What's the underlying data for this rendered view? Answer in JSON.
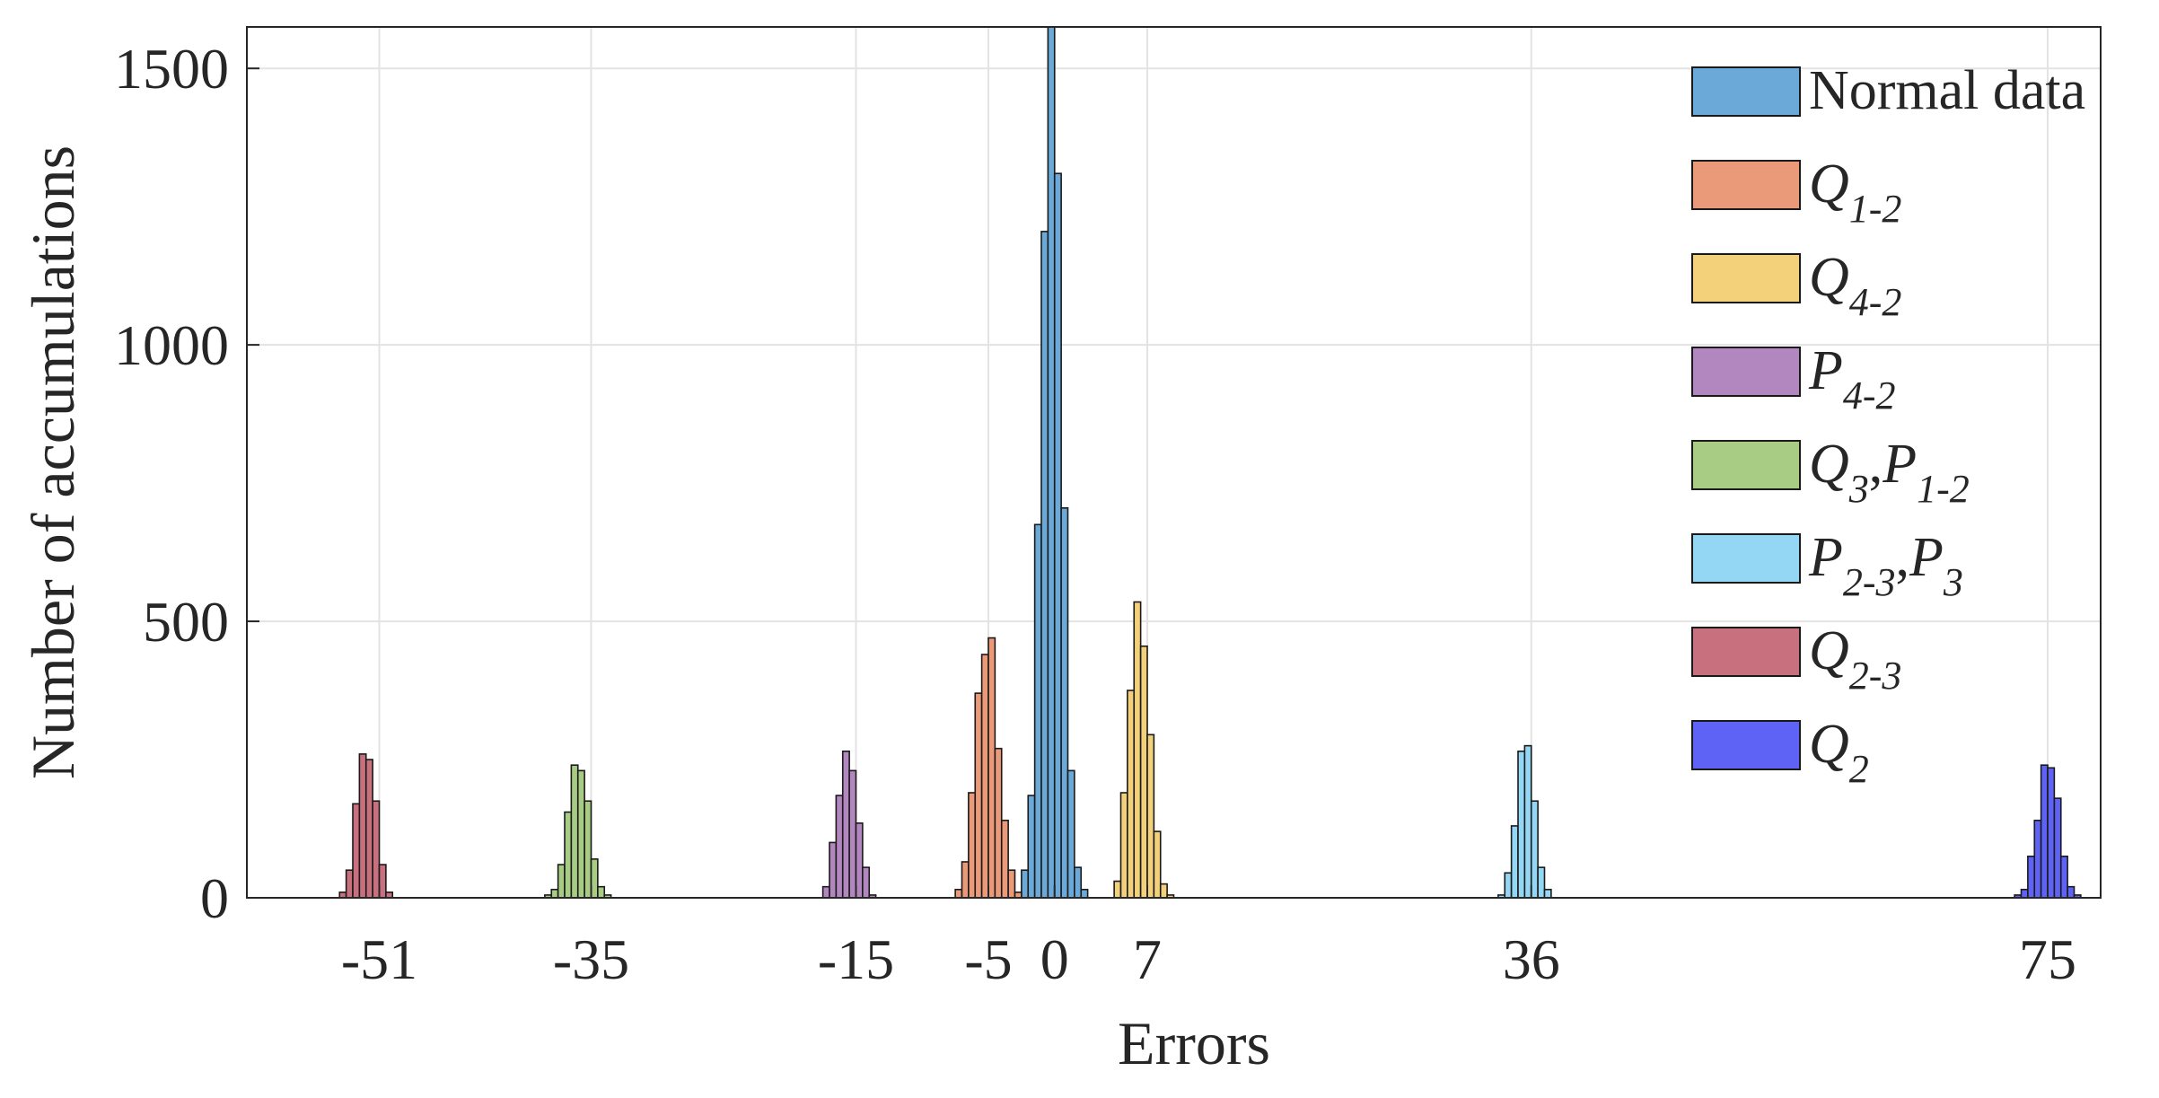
{
  "chart_data": {
    "type": "bar",
    "title": "",
    "xlabel": "Errors",
    "ylabel": "Number of accumulations",
    "xlim": [
      -61,
      79
    ],
    "ylim": [
      0,
      1575
    ],
    "x_ticks": [
      -51,
      -35,
      -15,
      -5,
      0,
      7,
      36,
      75
    ],
    "y_ticks": [
      0,
      500,
      1000,
      1500
    ],
    "grid": true,
    "legend_placement": "top-right",
    "bin_width": 0.5,
    "series": [
      {
        "name": "Normal data",
        "color": "#6aa9d8",
        "bins": [
          {
            "x": -2.5,
            "y": 50
          },
          {
            "x": -2.0,
            "y": 185
          },
          {
            "x": -1.5,
            "y": 675
          },
          {
            "x": -1.0,
            "y": 1205
          },
          {
            "x": -0.5,
            "y": 1580
          },
          {
            "x": 0.0,
            "y": 1310
          },
          {
            "x": 0.5,
            "y": 705
          },
          {
            "x": 1.0,
            "y": 230
          },
          {
            "x": 1.5,
            "y": 55
          },
          {
            "x": 2.0,
            "y": 15
          }
        ]
      },
      {
        "name": "Q1-2",
        "label_main": "Q",
        "label_sub": "1-2",
        "color": "#eb9a79",
        "bins": [
          {
            "x": -7.5,
            "y": 15
          },
          {
            "x": -7.0,
            "y": 65
          },
          {
            "x": -6.5,
            "y": 190
          },
          {
            "x": -6.0,
            "y": 370
          },
          {
            "x": -5.5,
            "y": 440
          },
          {
            "x": -5.0,
            "y": 470
          },
          {
            "x": -4.5,
            "y": 270
          },
          {
            "x": -4.0,
            "y": 140
          },
          {
            "x": -3.5,
            "y": 50
          },
          {
            "x": -3.0,
            "y": 10
          }
        ]
      },
      {
        "name": "Q4-2",
        "label_main": "Q",
        "label_sub": "4-2",
        "color": "#f3d07a",
        "bins": [
          {
            "x": 4.5,
            "y": 30
          },
          {
            "x": 5.0,
            "y": 190
          },
          {
            "x": 5.5,
            "y": 375
          },
          {
            "x": 6.0,
            "y": 535
          },
          {
            "x": 6.5,
            "y": 455
          },
          {
            "x": 7.0,
            "y": 295
          },
          {
            "x": 7.5,
            "y": 120
          },
          {
            "x": 8.0,
            "y": 25
          },
          {
            "x": 8.5,
            "y": 5
          }
        ]
      },
      {
        "name": "P4-2",
        "label_main": "P",
        "label_sub": "4-2",
        "color": "#b286bf",
        "bins": [
          {
            "x": -17.5,
            "y": 20
          },
          {
            "x": -17.0,
            "y": 100
          },
          {
            "x": -16.5,
            "y": 185
          },
          {
            "x": -16.0,
            "y": 265
          },
          {
            "x": -15.5,
            "y": 230
          },
          {
            "x": -15.0,
            "y": 135
          },
          {
            "x": -14.5,
            "y": 55
          },
          {
            "x": -14.0,
            "y": 5
          }
        ]
      },
      {
        "name": "Q3,P1-2",
        "label_main": "Q",
        "label_sub": "3",
        "label_main2": "P",
        "label_sub2": "1-2",
        "color": "#a9cc85",
        "bins": [
          {
            "x": -38.5,
            "y": 5
          },
          {
            "x": -38.0,
            "y": 15
          },
          {
            "x": -37.5,
            "y": 60
          },
          {
            "x": -37.0,
            "y": 155
          },
          {
            "x": -36.5,
            "y": 240
          },
          {
            "x": -36.0,
            "y": 230
          },
          {
            "x": -35.5,
            "y": 175
          },
          {
            "x": -35.0,
            "y": 70
          },
          {
            "x": -34.5,
            "y": 20
          },
          {
            "x": -34.0,
            "y": 5
          }
        ]
      },
      {
        "name": "P2-3,P3",
        "label_main": "P",
        "label_sub": "2-3",
        "label_main2": "P",
        "label_sub2": "3",
        "color": "#93d7f5",
        "bins": [
          {
            "x": 33.5,
            "y": 5
          },
          {
            "x": 34.0,
            "y": 45
          },
          {
            "x": 34.5,
            "y": 130
          },
          {
            "x": 35.0,
            "y": 265
          },
          {
            "x": 35.5,
            "y": 275
          },
          {
            "x": 36.0,
            "y": 175
          },
          {
            "x": 36.5,
            "y": 55
          },
          {
            "x": 37.0,
            "y": 15
          }
        ]
      },
      {
        "name": "Q2-3",
        "label_main": "Q",
        "label_sub": "2-3",
        "color": "#c9707f",
        "bins": [
          {
            "x": -54.0,
            "y": 10
          },
          {
            "x": -53.5,
            "y": 50
          },
          {
            "x": -53.0,
            "y": 170
          },
          {
            "x": -52.5,
            "y": 260
          },
          {
            "x": -52.0,
            "y": 250
          },
          {
            "x": -51.5,
            "y": 175
          },
          {
            "x": -51.0,
            "y": 60
          },
          {
            "x": -50.5,
            "y": 10
          }
        ]
      },
      {
        "name": "Q2",
        "label_main": "Q",
        "label_sub": "2",
        "color": "#5f63f5",
        "bins": [
          {
            "x": 72.5,
            "y": 5
          },
          {
            "x": 73.0,
            "y": 15
          },
          {
            "x": 73.5,
            "y": 75
          },
          {
            "x": 74.0,
            "y": 140
          },
          {
            "x": 74.5,
            "y": 240
          },
          {
            "x": 75.0,
            "y": 235
          },
          {
            "x": 75.5,
            "y": 180
          },
          {
            "x": 76.0,
            "y": 75
          },
          {
            "x": 76.5,
            "y": 20
          },
          {
            "x": 77.0,
            "y": 5
          }
        ]
      }
    ]
  }
}
